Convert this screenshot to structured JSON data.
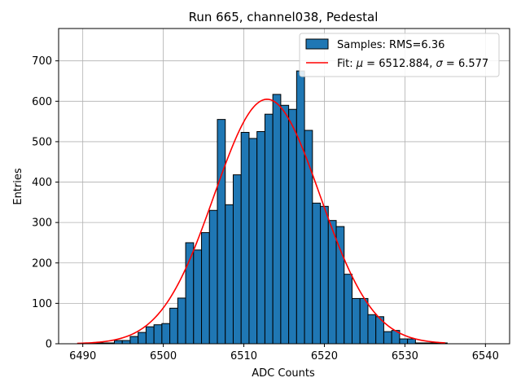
{
  "chart_data": {
    "type": "bar",
    "title": "Run 665, channel038, Pedestal",
    "xlabel": "ADC Counts",
    "ylabel": "Entries",
    "xlim": [
      6487,
      6543
    ],
    "ylim": [
      0,
      780
    ],
    "xticks": [
      "6490",
      "6500",
      "6510",
      "6520",
      "6530",
      "6540"
    ],
    "yticks": [
      "0",
      "100",
      "200",
      "300",
      "400",
      "500",
      "600",
      "700"
    ],
    "grid": true,
    "legend_position": "top-right",
    "bar_color": "#1f77b4",
    "fit_color": "#ff0000",
    "histogram": {
      "name": "Samples: RMS=6.36",
      "bin_start": 6489.0,
      "bin_width": 0.984,
      "counts": [
        0,
        0,
        2,
        2,
        2,
        8,
        8,
        18,
        28,
        42,
        47,
        50,
        88,
        113,
        250,
        232,
        275,
        330,
        555,
        344,
        418,
        523,
        508,
        525,
        568,
        617,
        590,
        580,
        675,
        528,
        348,
        340,
        305,
        290,
        172,
        112,
        112,
        72,
        67,
        30,
        33,
        12,
        12,
        2,
        2,
        2,
        2
      ]
    },
    "fit": {
      "name_prefix": "Fit: ",
      "mu_label": "μ",
      "mu_value": "6512.884",
      "sigma_label": "σ",
      "sigma_value": "6.577",
      "mu": 6512.884,
      "sigma": 6.577,
      "amplitude": 605,
      "x_range": [
        6489.3,
        6535.0
      ]
    }
  }
}
